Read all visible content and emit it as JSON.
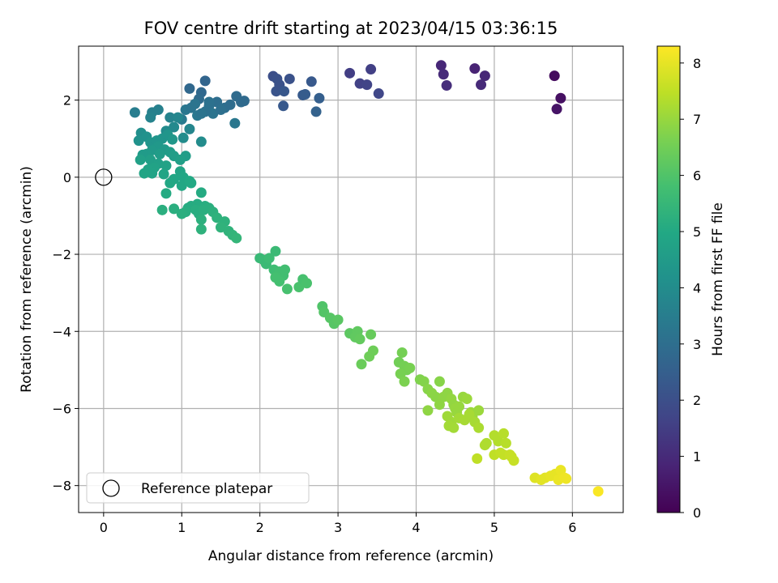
{
  "chart_data": {
    "type": "scatter",
    "title": "FOV centre drift starting at 2023/04/15 03:36:15",
    "xlabel": "Angular distance from reference (arcmin)",
    "ylabel": "Rotation from reference (arcmin)",
    "xlim": [
      -0.32,
      6.65
    ],
    "ylim": [
      -8.7,
      3.4
    ],
    "xticks": [
      0,
      1,
      2,
      3,
      4,
      5,
      6
    ],
    "yticks": [
      -8,
      -6,
      -4,
      -2,
      0,
      2
    ],
    "grid": true,
    "legend": {
      "placement": "lower-left",
      "entries": [
        "Reference platepar"
      ]
    },
    "reference_point": {
      "x": 0,
      "y": 0,
      "label": "Reference platepar"
    },
    "colorbar": {
      "label": "Hours from first FF file",
      "min": 0,
      "max": 8.3,
      "ticks": [
        0,
        1,
        2,
        3,
        4,
        5,
        6,
        7,
        8
      ],
      "colormap": "viridis"
    },
    "points": [
      [
        5.77,
        2.63,
        0.25
      ],
      [
        5.85,
        2.05,
        0.35
      ],
      [
        5.8,
        1.77,
        0.45
      ],
      [
        4.75,
        2.82,
        0.8
      ],
      [
        4.88,
        2.63,
        0.9
      ],
      [
        4.83,
        2.4,
        1.0
      ],
      [
        4.32,
        2.9,
        0.9
      ],
      [
        4.35,
        2.67,
        1.0
      ],
      [
        4.39,
        2.38,
        1.1
      ],
      [
        3.15,
        2.7,
        1.5
      ],
      [
        3.28,
        2.43,
        1.6
      ],
      [
        3.37,
        2.4,
        1.65
      ],
      [
        3.42,
        2.8,
        1.55
      ],
      [
        3.52,
        2.17,
        1.75
      ],
      [
        2.17,
        2.62,
        2.0
      ],
      [
        2.22,
        2.55,
        2.05
      ],
      [
        2.21,
        2.23,
        2.15
      ],
      [
        2.25,
        2.4,
        2.1
      ],
      [
        2.31,
        2.23,
        2.25
      ],
      [
        2.38,
        2.55,
        2.1
      ],
      [
        2.3,
        1.85,
        2.3
      ],
      [
        2.55,
        2.13,
        2.35
      ],
      [
        2.58,
        2.15,
        2.4
      ],
      [
        2.66,
        2.48,
        2.3
      ],
      [
        2.72,
        1.7,
        2.6
      ],
      [
        2.76,
        2.05,
        2.5
      ],
      [
        1.3,
        2.5,
        2.7
      ],
      [
        1.25,
        2.2,
        2.8
      ],
      [
        1.1,
        2.3,
        2.8
      ],
      [
        1.22,
        2.03,
        2.9
      ],
      [
        1.45,
        1.95,
        3.0
      ],
      [
        1.35,
        1.85,
        3.1
      ],
      [
        1.55,
        1.8,
        3.0
      ],
      [
        1.62,
        1.88,
        2.95
      ],
      [
        1.7,
        2.1,
        2.9
      ],
      [
        1.76,
        1.95,
        2.9
      ],
      [
        1.8,
        1.98,
        2.85
      ],
      [
        1.4,
        1.65,
        3.2
      ],
      [
        1.3,
        1.7,
        3.1
      ],
      [
        1.2,
        1.6,
        3.3
      ],
      [
        1.05,
        1.75,
        3.3
      ],
      [
        1.12,
        1.8,
        3.2
      ],
      [
        1.0,
        1.5,
        3.4
      ],
      [
        1.68,
        1.4,
        3.3
      ],
      [
        1.25,
        1.65,
        3.2
      ],
      [
        1.17,
        1.9,
        3.2
      ],
      [
        1.35,
        1.95,
        3.1
      ],
      [
        1.5,
        1.75,
        3.05
      ],
      [
        0.4,
        1.68,
        3.5
      ],
      [
        0.7,
        1.75,
        3.6
      ],
      [
        0.62,
        1.68,
        3.6
      ],
      [
        0.6,
        1.55,
        3.7
      ],
      [
        0.85,
        1.55,
        3.7
      ],
      [
        0.95,
        1.55,
        3.8
      ],
      [
        1.1,
        1.25,
        3.8
      ],
      [
        0.9,
        1.3,
        3.9
      ],
      [
        0.8,
        1.2,
        3.95
      ],
      [
        1.25,
        0.92,
        4.0
      ],
      [
        1.02,
        1.02,
        4.0
      ],
      [
        0.48,
        1.15,
        4.1
      ],
      [
        0.45,
        0.95,
        4.2
      ],
      [
        0.55,
        1.05,
        4.2
      ],
      [
        0.6,
        0.9,
        4.3
      ],
      [
        0.68,
        0.95,
        4.3
      ],
      [
        0.75,
        1.0,
        4.3
      ],
      [
        0.82,
        1.1,
        4.3
      ],
      [
        0.88,
        0.98,
        4.35
      ],
      [
        0.7,
        0.8,
        4.4
      ],
      [
        0.78,
        0.72,
        4.45
      ],
      [
        0.62,
        0.7,
        4.45
      ],
      [
        0.55,
        0.6,
        4.5
      ],
      [
        0.5,
        0.58,
        4.5
      ],
      [
        0.72,
        0.6,
        4.55
      ],
      [
        0.85,
        0.65,
        4.55
      ],
      [
        0.9,
        0.55,
        4.6
      ],
      [
        1.05,
        0.55,
        4.6
      ],
      [
        0.98,
        0.45,
        4.65
      ],
      [
        0.6,
        0.45,
        4.65
      ],
      [
        0.47,
        0.45,
        4.7
      ],
      [
        0.7,
        0.35,
        4.7
      ],
      [
        0.8,
        0.3,
        4.75
      ],
      [
        0.65,
        0.25,
        4.75
      ],
      [
        0.57,
        0.2,
        4.8
      ],
      [
        0.62,
        0.1,
        4.8
      ],
      [
        0.52,
        0.1,
        4.85
      ],
      [
        0.77,
        0.08,
        4.85
      ],
      [
        0.98,
        0.15,
        4.85
      ],
      [
        1.02,
        0.0,
        4.9
      ],
      [
        0.9,
        -0.05,
        4.9
      ],
      [
        0.85,
        -0.15,
        4.95
      ],
      [
        1.0,
        -0.22,
        4.95
      ],
      [
        1.1,
        -0.1,
        5.0
      ],
      [
        1.12,
        -0.15,
        5.0
      ],
      [
        0.8,
        -0.42,
        5.05
      ],
      [
        1.25,
        -0.4,
        5.05
      ],
      [
        1.2,
        -0.7,
        5.1
      ],
      [
        1.12,
        -0.75,
        5.1
      ],
      [
        1.08,
        -0.8,
        5.1
      ],
      [
        1.18,
        -0.85,
        5.15
      ],
      [
        1.05,
        -0.9,
        5.15
      ],
      [
        1.22,
        -0.95,
        5.15
      ],
      [
        1.3,
        -0.75,
        5.15
      ],
      [
        1.35,
        -0.8,
        5.2
      ],
      [
        0.75,
        -0.85,
        5.2
      ],
      [
        0.9,
        -0.82,
        5.2
      ],
      [
        1.0,
        -0.95,
        5.2
      ],
      [
        1.28,
        -0.85,
        5.2
      ],
      [
        1.4,
        -0.9,
        5.25
      ],
      [
        1.25,
        -1.1,
        5.25
      ],
      [
        1.45,
        -1.05,
        5.3
      ],
      [
        1.55,
        -1.15,
        5.3
      ],
      [
        1.25,
        -1.35,
        5.3
      ],
      [
        1.5,
        -1.3,
        5.35
      ],
      [
        1.6,
        -1.4,
        5.35
      ],
      [
        1.65,
        -1.5,
        5.4
      ],
      [
        1.7,
        -1.58,
        5.45
      ],
      [
        2.0,
        -2.1,
        5.55
      ],
      [
        2.05,
        -2.15,
        5.6
      ],
      [
        2.08,
        -2.25,
        5.6
      ],
      [
        2.12,
        -2.1,
        5.65
      ],
      [
        2.2,
        -1.92,
        5.6
      ],
      [
        2.18,
        -2.4,
        5.7
      ],
      [
        2.25,
        -2.45,
        5.75
      ],
      [
        2.3,
        -2.55,
        5.75
      ],
      [
        2.32,
        -2.4,
        5.75
      ],
      [
        2.2,
        -2.6,
        5.8
      ],
      [
        2.25,
        -2.7,
        5.8
      ],
      [
        2.35,
        -2.9,
        5.85
      ],
      [
        2.5,
        -2.85,
        5.9
      ],
      [
        2.55,
        -2.65,
        5.85
      ],
      [
        2.6,
        -2.75,
        5.9
      ],
      [
        2.8,
        -3.35,
        6.0
      ],
      [
        2.82,
        -3.5,
        6.05
      ],
      [
        2.9,
        -3.65,
        6.1
      ],
      [
        2.95,
        -3.8,
        6.1
      ],
      [
        3.0,
        -3.7,
        6.15
      ],
      [
        3.15,
        -4.05,
        6.2
      ],
      [
        3.25,
        -4.0,
        6.25
      ],
      [
        3.22,
        -4.15,
        6.25
      ],
      [
        3.28,
        -4.2,
        6.3
      ],
      [
        3.42,
        -4.08,
        6.35
      ],
      [
        3.3,
        -4.85,
        6.4
      ],
      [
        3.4,
        -4.65,
        6.45
      ],
      [
        3.45,
        -4.5,
        6.45
      ],
      [
        3.78,
        -4.8,
        6.5
      ],
      [
        3.82,
        -4.55,
        6.55
      ],
      [
        3.85,
        -4.9,
        6.55
      ],
      [
        3.88,
        -5.0,
        6.55
      ],
      [
        3.92,
        -4.95,
        6.6
      ],
      [
        3.8,
        -5.1,
        6.6
      ],
      [
        3.85,
        -5.3,
        6.65
      ],
      [
        4.05,
        -5.25,
        6.7
      ],
      [
        4.1,
        -5.3,
        6.75
      ],
      [
        4.15,
        -5.5,
        6.8
      ],
      [
        4.2,
        -5.6,
        6.85
      ],
      [
        4.25,
        -5.7,
        6.85
      ],
      [
        4.3,
        -5.3,
        6.8
      ],
      [
        4.35,
        -5.7,
        6.9
      ],
      [
        4.4,
        -5.6,
        6.9
      ],
      [
        4.45,
        -5.75,
        6.95
      ],
      [
        4.48,
        -5.9,
        6.95
      ],
      [
        4.3,
        -5.9,
        6.9
      ],
      [
        4.15,
        -6.05,
        6.9
      ],
      [
        4.5,
        -6.0,
        7.0
      ],
      [
        4.52,
        -6.1,
        7.0
      ],
      [
        4.55,
        -5.95,
        7.0
      ],
      [
        4.6,
        -5.7,
        7.0
      ],
      [
        4.65,
        -5.75,
        7.05
      ],
      [
        4.7,
        -6.1,
        7.05
      ],
      [
        4.72,
        -6.2,
        7.05
      ],
      [
        4.8,
        -6.05,
        7.05
      ],
      [
        4.4,
        -6.2,
        7.1
      ],
      [
        4.45,
        -6.35,
        7.1
      ],
      [
        4.42,
        -6.45,
        7.15
      ],
      [
        4.48,
        -6.5,
        7.15
      ],
      [
        4.55,
        -6.25,
        7.15
      ],
      [
        4.62,
        -6.3,
        7.2
      ],
      [
        4.68,
        -6.15,
        7.2
      ],
      [
        4.75,
        -6.35,
        7.2
      ],
      [
        4.8,
        -6.5,
        7.25
      ],
      [
        4.88,
        -6.95,
        7.3
      ],
      [
        4.9,
        -6.9,
        7.3
      ],
      [
        5.0,
        -6.7,
        7.35
      ],
      [
        5.05,
        -6.85,
        7.35
      ],
      [
        5.12,
        -6.65,
        7.4
      ],
      [
        5.15,
        -6.9,
        7.4
      ],
      [
        4.78,
        -7.3,
        7.5
      ],
      [
        5.0,
        -7.2,
        7.5
      ],
      [
        5.08,
        -7.15,
        7.55
      ],
      [
        5.12,
        -7.2,
        7.55
      ],
      [
        5.2,
        -7.2,
        7.6
      ],
      [
        5.25,
        -7.35,
        7.6
      ],
      [
        5.22,
        -7.25,
        7.6
      ],
      [
        5.52,
        -7.8,
        7.9
      ],
      [
        5.6,
        -7.85,
        7.95
      ],
      [
        5.65,
        -7.8,
        7.95
      ],
      [
        5.72,
        -7.75,
        8.0
      ],
      [
        5.78,
        -7.7,
        8.0
      ],
      [
        5.82,
        -7.85,
        8.05
      ],
      [
        5.85,
        -7.6,
        8.05
      ],
      [
        5.9,
        -7.8,
        8.1
      ],
      [
        5.92,
        -7.82,
        8.1
      ],
      [
        6.33,
        -8.15,
        8.25
      ]
    ]
  }
}
